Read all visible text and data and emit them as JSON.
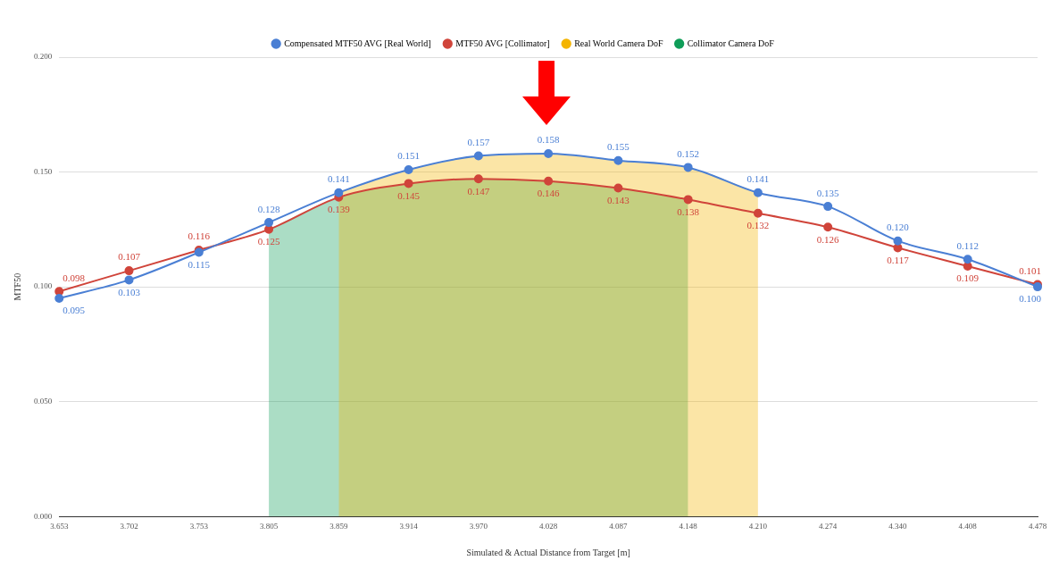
{
  "chart_data": {
    "type": "line",
    "xlabel": "Simulated & Actual Distance from Target [m]",
    "ylabel": "MTF50",
    "categories": [
      "3.653",
      "3.702",
      "3.753",
      "3.805",
      "3.859",
      "3.914",
      "3.970",
      "4.028",
      "4.087",
      "4.148",
      "4.210",
      "4.274",
      "4.340",
      "4.408",
      "4.478"
    ],
    "series": [
      {
        "name": "Compensated MTF50 AVG [Real World]",
        "color": "#4a7fd4",
        "values": [
          0.095,
          0.103,
          0.115,
          0.128,
          0.141,
          0.151,
          0.157,
          0.158,
          0.155,
          0.152,
          0.141,
          0.135,
          0.12,
          0.112,
          0.1
        ],
        "value_labels": [
          "0.095",
          "0.103",
          "0.115",
          "0.128",
          "0.141",
          "0.151",
          "0.157",
          "0.158",
          "0.155",
          "0.152",
          "0.141",
          "0.135",
          "0.120",
          "0.112",
          "0.100"
        ]
      },
      {
        "name": "MTF50 AVG [Collimator]",
        "color": "#d0443a",
        "values": [
          0.098,
          0.107,
          0.116,
          0.125,
          0.139,
          0.145,
          0.147,
          0.146,
          0.143,
          0.138,
          0.132,
          0.126,
          0.117,
          0.109,
          0.101
        ],
        "value_labels": [
          "0.098",
          "0.107",
          "0.116",
          "0.125",
          "0.139",
          "0.145",
          "0.147",
          "0.146",
          "0.143",
          "0.138",
          "0.132",
          "0.126",
          "0.117",
          "0.109",
          "0.101"
        ]
      },
      {
        "name": "Real World Camera DoF",
        "type": "area",
        "marker": "none",
        "color": "#f4b400",
        "values": [
          null,
          null,
          null,
          null,
          0.141,
          0.151,
          0.157,
          0.158,
          0.155,
          0.152,
          0.141,
          null,
          null,
          null,
          null
        ]
      },
      {
        "name": "Collimator Camera DoF",
        "type": "area",
        "marker": "none",
        "color": "#0f9d58",
        "values": [
          null,
          null,
          null,
          0.125,
          0.139,
          0.145,
          0.147,
          0.146,
          0.143,
          0.138,
          null,
          null,
          null,
          null,
          null
        ]
      }
    ],
    "ylim": [
      0,
      0.2
    ],
    "yticks": [
      {
        "value": 0,
        "label": "0.000"
      },
      {
        "value": 0.05,
        "label": "0.050"
      },
      {
        "value": 0.1,
        "label": "0.100"
      },
      {
        "value": 0.15,
        "label": "0.150"
      },
      {
        "value": 0.2,
        "label": "0.200"
      }
    ],
    "grid": "y",
    "legend": "top",
    "marker": "circle",
    "line_style": "solid"
  }
}
